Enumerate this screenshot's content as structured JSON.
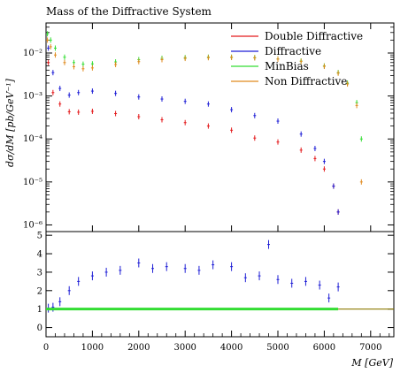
{
  "chart_data": [
    {
      "type": "scatter",
      "title": "Mass of the Diffractive System",
      "ylabel": "dσ/dM [pb/GeV⁻¹]",
      "xlabel": "",
      "yscale": "log",
      "xlim": [
        0,
        7500
      ],
      "ylim": [
        7e-07,
        0.05
      ],
      "y_tick_labels": [
        "10⁻⁶",
        "10⁻⁵",
        "10⁻⁴",
        "10⁻³",
        "10⁻²"
      ],
      "y_tick_values": [
        1e-06,
        1e-05,
        0.0001,
        0.001,
        0.01
      ],
      "legend_position": "top-right",
      "series": [
        {
          "name": "Double Diffractive",
          "color": "#e41a1c",
          "x": [
            50,
            150,
            300,
            500,
            700,
            1000,
            1500,
            2000,
            2500,
            3000,
            3500,
            4000,
            4500,
            5000,
            5500,
            5800,
            6000,
            6200,
            6300
          ],
          "y": [
            0.006,
            0.0012,
            0.00065,
            0.00043,
            0.00042,
            0.00044,
            0.00039,
            0.00033,
            0.00028,
            0.00024,
            0.0002,
            0.00016,
            0.000105,
            8.5e-05,
            5.5e-05,
            3.5e-05,
            2e-05,
            8e-06,
            2e-06
          ]
        },
        {
          "name": "Diffractive",
          "color": "#1f1fd6",
          "x": [
            50,
            150,
            300,
            500,
            700,
            1000,
            1500,
            2000,
            2500,
            3000,
            3500,
            4000,
            4500,
            5000,
            5500,
            5800,
            6000,
            6200,
            6300
          ],
          "y": [
            0.013,
            0.0035,
            0.0015,
            0.00105,
            0.0012,
            0.0013,
            0.00115,
            0.00095,
            0.00085,
            0.00075,
            0.00065,
            0.00048,
            0.00035,
            0.00026,
            0.00013,
            6e-05,
            3e-05,
            8e-06,
            2e-06
          ]
        },
        {
          "name": "MinBias",
          "color": "#33dd33",
          "x": [
            30,
            100,
            200,
            400,
            600,
            800,
            1000,
            1500,
            2000,
            2500,
            3000,
            3500,
            4000,
            4500,
            5000,
            5500,
            6000,
            6300,
            6500,
            6700,
            6800
          ],
          "y": [
            0.028,
            0.02,
            0.013,
            0.008,
            0.006,
            0.0055,
            0.0056,
            0.0062,
            0.007,
            0.0075,
            0.0078,
            0.008,
            0.008,
            0.0078,
            0.0073,
            0.0065,
            0.005,
            0.0035,
            0.002,
            0.0007,
            0.0001
          ]
        },
        {
          "name": "Non Diffractive",
          "color": "#e08a1e",
          "x": [
            30,
            100,
            200,
            400,
            600,
            800,
            1000,
            1500,
            2000,
            2500,
            3000,
            3500,
            4000,
            4500,
            5000,
            5500,
            6000,
            6300,
            6500,
            6700,
            6800
          ],
          "y": [
            0.02,
            0.014,
            0.009,
            0.006,
            0.0048,
            0.0043,
            0.0045,
            0.0054,
            0.0063,
            0.007,
            0.0075,
            0.0078,
            0.0079,
            0.0077,
            0.0072,
            0.0064,
            0.0049,
            0.0034,
            0.0019,
            0.0006,
            1e-05
          ]
        }
      ]
    },
    {
      "type": "scatter",
      "title": "",
      "xlabel": "M [GeV]",
      "ylabel": "",
      "xlim": [
        0,
        7500
      ],
      "ylim": [
        -0.5,
        5.2
      ],
      "x_ticks": [
        0,
        1000,
        2000,
        3000,
        4000,
        5000,
        6000,
        7000
      ],
      "x_tick_labels": [
        "0",
        "1000",
        "2000",
        "3000",
        "4000",
        "5000",
        "6000",
        "7000"
      ],
      "y_ticks": [
        0,
        1,
        2,
        3,
        4,
        5
      ],
      "y_tick_labels": [
        "0",
        "1",
        "2",
        "3",
        "4",
        "5"
      ],
      "series": [
        {
          "color": "#1f1fd6",
          "x": [
            50,
            150,
            300,
            500,
            700,
            1000,
            1300,
            1600,
            2000,
            2300,
            2600,
            3000,
            3300,
            3600,
            4000,
            4300,
            4600,
            4800,
            5000,
            5300,
            5600,
            5900,
            6100,
            6300
          ],
          "y": [
            1.05,
            1.1,
            1.4,
            2.0,
            2.5,
            2.8,
            3.0,
            3.1,
            3.5,
            3.2,
            3.3,
            3.2,
            3.1,
            3.4,
            3.3,
            2.7,
            2.8,
            4.5,
            2.6,
            2.4,
            2.5,
            2.3,
            1.6,
            2.2
          ]
        },
        {
          "color": "#33dd33",
          "x": [
            0,
            1000,
            2000,
            3000,
            4000,
            5000,
            5500,
            6000,
            6300
          ],
          "y": [
            1.0,
            1.0,
            1.0,
            1.0,
            1.0,
            1.0,
            1.0,
            1.0,
            1.0
          ]
        },
        {
          "color": "#8b7a00",
          "x": [
            6300,
            7500
          ],
          "y": [
            1.0,
            1.0
          ]
        }
      ]
    }
  ]
}
